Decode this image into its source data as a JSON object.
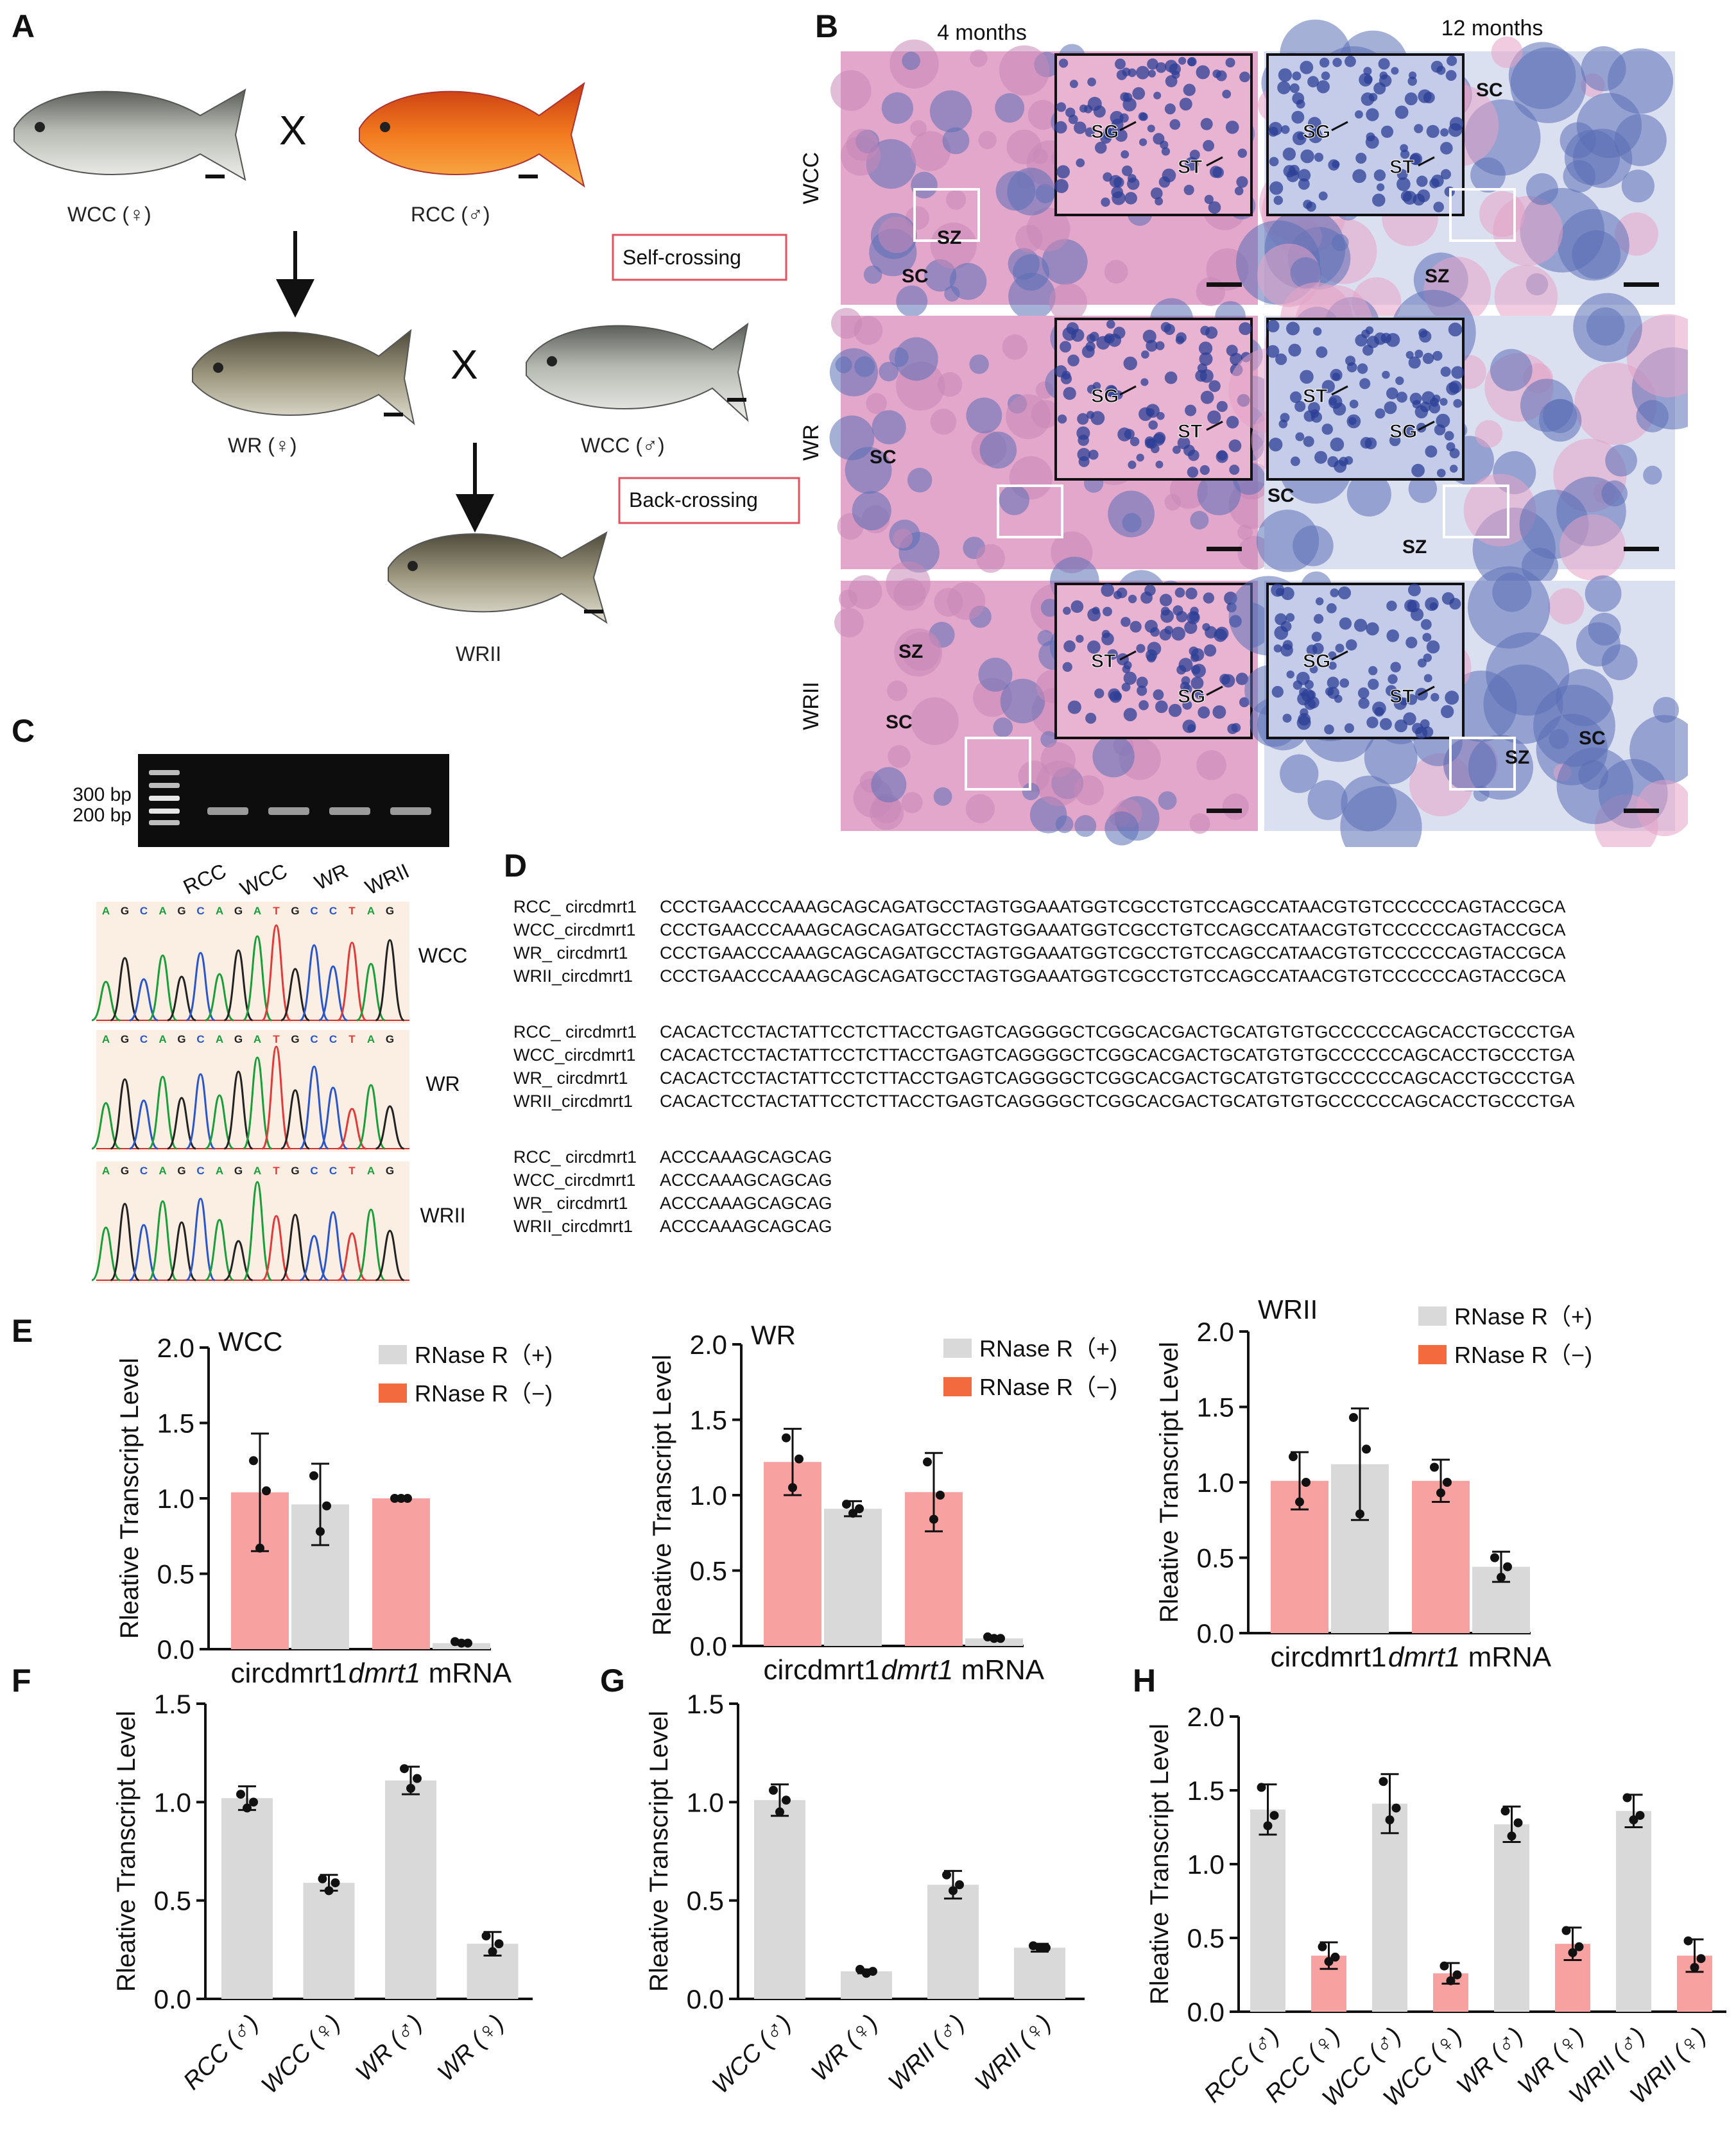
{
  "panel_labels": {
    "A": "A",
    "B": "B",
    "C": "C",
    "D": "D",
    "E": "E",
    "F": "F",
    "G": "G",
    "H": "H"
  },
  "panelA": {
    "wcc_female": "WCC (♀)",
    "rcc_male": "RCC (♂)",
    "cross": "X",
    "wr_female": "WR (♀)",
    "wcc_male": "WCC (♂)",
    "wrii": "WRII",
    "self_crossing": "Self-crossing",
    "back_crossing": "Back-crossing"
  },
  "panelB": {
    "col_4": "4 months",
    "col_12": "12 months",
    "rows": [
      "WCC",
      "WR",
      "WRII"
    ],
    "tissue_colors": {
      "he_pink": "#e3a7cb",
      "he_blue": "#5b6fb7",
      "dark_blue": "#2c3f95"
    },
    "labels": [
      {
        "r": 0,
        "c": 0,
        "items": [
          "SZ",
          "SC"
        ],
        "inset": [
          "SG",
          "ST"
        ]
      },
      {
        "r": 0,
        "c": 1,
        "items": [
          "SC",
          "SZ"
        ],
        "inset": [
          "SG",
          "ST"
        ]
      },
      {
        "r": 1,
        "c": 0,
        "items": [
          "SC"
        ],
        "inset": [
          "SG",
          "ST"
        ]
      },
      {
        "r": 1,
        "c": 1,
        "items": [
          "SC",
          "SZ"
        ],
        "inset": [
          "ST",
          "SG"
        ]
      },
      {
        "r": 2,
        "c": 0,
        "items": [
          "SZ",
          "SC"
        ],
        "inset": [
          "ST",
          "SG"
        ]
      },
      {
        "r": 2,
        "c": 1,
        "items": [
          "SC",
          "SZ"
        ],
        "inset": [
          "SG",
          "ST"
        ]
      }
    ]
  },
  "panelC": {
    "ladder": [
      "300 bp",
      "200 bp"
    ],
    "lanes": [
      "RCC",
      "WCC",
      "WR",
      "WRII"
    ],
    "bases": [
      "A",
      "G",
      "C",
      "A",
      "G",
      "C",
      "A",
      "G",
      "A",
      "T",
      "G",
      "C",
      "C",
      "T",
      "A",
      "G"
    ],
    "chrom_labels": [
      "WCC",
      "WR",
      "WRII"
    ],
    "base_colors": {
      "A": "#1a9e3a",
      "G": "#222222",
      "C": "#2a56c9",
      "T": "#e03a3a"
    }
  },
  "panelD": {
    "blocks": [
      {
        "rows": [
          {
            "name": "RCC_ circdmrt1",
            "seq": "CCCTGAACCCAAAGCAGCAGATGCCTAGTGGAAATGGTCGCCTGTCCAGCCATAACGTGTCCCCCCAGTACCGCA"
          },
          {
            "name": "WCC_circdmrt1",
            "seq": "CCCTGAACCCAAAGCAGCAGATGCCTAGTGGAAATGGTCGCCTGTCCAGCCATAACGTGTCCCCCCAGTACCGCA"
          },
          {
            "name": "WR_ circdmrt1",
            "seq": "CCCTGAACCCAAAGCAGCAGATGCCTAGTGGAAATGGTCGCCTGTCCAGCCATAACGTGTCCCCCCAGTACCGCA"
          },
          {
            "name": "WRII_circdmrt1",
            "seq": "CCCTGAACCCAAAGCAGCAGATGCCTAGTGGAAATGGTCGCCTGTCCAGCCATAACGTGTCCCCCCAGTACCGCA"
          }
        ]
      },
      {
        "rows": [
          {
            "name": "RCC_ circdmrt1",
            "seq": "CACACTCCTACTATTCCTCTTACCTGAGTCAGGGGCTCGGCACGACTGCATGTGTGCCCCCCAGCACCTGCCCTGA"
          },
          {
            "name": "WCC_circdmrt1",
            "seq": "CACACTCCTACTATTCCTCTTACCTGAGTCAGGGGCTCGGCACGACTGCATGTGTGCCCCCCAGCACCTGCCCTGA"
          },
          {
            "name": "WR_ circdmrt1",
            "seq": "CACACTCCTACTATTCCTCTTACCTGAGTCAGGGGCTCGGCACGACTGCATGTGTGCCCCCCAGCACCTGCCCTGA"
          },
          {
            "name": "WRII_circdmrt1",
            "seq": "CACACTCCTACTATTCCTCTTACCTGAGTCAGGGGCTCGGCACGACTGCATGTGTGCCCCCCAGCACCTGCCCTGA"
          }
        ]
      },
      {
        "rows": [
          {
            "name": "RCC_ circdmrt1",
            "seq": "ACCCAAAGCAGCAG"
          },
          {
            "name": "WCC_circdmrt1",
            "seq": "ACCCAAAGCAGCAG"
          },
          {
            "name": "WR_ circdmrt1",
            "seq": "ACCCAAAGCAGCAG"
          },
          {
            "name": "WRII_circdmrt1",
            "seq": "ACCCAAAGCAGCAG"
          }
        ]
      }
    ]
  },
  "chart_data": [
    {
      "panel": "E",
      "type": "bar",
      "title": "WCC",
      "ylabel": "Rleative Transcript Level",
      "ylim": [
        0,
        2
      ],
      "yticks": [
        "0.0",
        "0.5",
        "1.0",
        "1.5",
        "2.0"
      ],
      "groups": [
        "circdmrt1",
        "dmrt1 mRNA"
      ],
      "legend": [
        "RNase R（+)",
        "RNase R（−)"
      ],
      "series": [
        {
          "name": "RNase R（−)",
          "color": "#f7a1a1",
          "values": [
            1.04,
            1.0
          ],
          "err": [
            0.39,
            0.01
          ],
          "points": [
            [
              1.25,
              1.05,
              0.67
            ],
            [
              1.0,
              1.0,
              1.0
            ]
          ]
        },
        {
          "name": "RNase R（+)",
          "color": "#d9d9d9",
          "values": [
            0.96,
            0.04
          ],
          "err": [
            0.27,
            0.01
          ],
          "points": [
            [
              1.15,
              0.95,
              0.78
            ],
            [
              0.05,
              0.04,
              0.04
            ]
          ]
        }
      ]
    },
    {
      "panel": "E2",
      "type": "bar",
      "title": "WR",
      "ylabel": "Rleative Transcript Level",
      "ylim": [
        0,
        2
      ],
      "yticks": [
        "0.0",
        "0.5",
        "1.0",
        "1.5",
        "2.0"
      ],
      "groups": [
        "circdmrt1",
        "dmrt1 mRNA"
      ],
      "legend": [
        "RNase R（+)",
        "RNase R（−)"
      ],
      "series": [
        {
          "name": "RNase R（−)",
          "color": "#f7a1a1",
          "values": [
            1.22,
            1.02
          ],
          "err": [
            0.22,
            0.26
          ],
          "points": [
            [
              1.38,
              1.24,
              1.05
            ],
            [
              1.22,
              1.0,
              0.84
            ]
          ]
        },
        {
          "name": "RNase R（+)",
          "color": "#d9d9d9",
          "values": [
            0.91,
            0.05
          ],
          "err": [
            0.05,
            0.01
          ],
          "points": [
            [
              0.94,
              0.91,
              0.88
            ],
            [
              0.06,
              0.05,
              0.05
            ]
          ]
        }
      ]
    },
    {
      "panel": "E3",
      "type": "bar",
      "title": "WRII",
      "ylabel": "Rleative Transcript Level",
      "ylim": [
        0,
        2
      ],
      "yticks": [
        "0.0",
        "0.5",
        "1.0",
        "1.5",
        "2.0"
      ],
      "groups": [
        "circdmrt1",
        "dmrt1 mRNA"
      ],
      "legend": [
        "RNase R（+)",
        "RNase R（−)"
      ],
      "series": [
        {
          "name": "RNase R（−)",
          "color": "#f7a1a1",
          "values": [
            1.01,
            1.01
          ],
          "err": [
            0.19,
            0.14
          ],
          "points": [
            [
              1.17,
              1.0,
              0.87
            ],
            [
              1.1,
              1.0,
              0.93
            ]
          ]
        },
        {
          "name": "RNase R（+)",
          "color": "#d9d9d9",
          "values": [
            1.12,
            0.44
          ],
          "err": [
            0.37,
            0.1
          ],
          "points": [
            [
              1.43,
              1.22,
              0.79
            ],
            [
              0.5,
              0.44,
              0.37
            ]
          ]
        }
      ]
    },
    {
      "panel": "F",
      "type": "bar",
      "ylabel": "Rleative Transcript Level",
      "ylim": [
        0,
        1.5
      ],
      "yticks": [
        "0.0",
        "0.5",
        "1.0",
        "1.5"
      ],
      "categories": [
        "RCC (♂)",
        "WCC (♀)",
        "WR (♂)",
        "WR (♀)"
      ],
      "colors": [
        "#d9d9d9",
        "#d9d9d9",
        "#d9d9d9",
        "#d9d9d9"
      ],
      "values": [
        1.02,
        0.59,
        1.11,
        0.28
      ],
      "err": [
        0.06,
        0.04,
        0.07,
        0.06
      ],
      "points": [
        [
          1.04,
          1.0,
          0.97
        ],
        [
          0.61,
          0.59,
          0.55
        ],
        [
          1.17,
          1.12,
          1.07
        ],
        [
          0.32,
          0.28,
          0.24
        ]
      ]
    },
    {
      "panel": "G",
      "type": "bar",
      "ylabel": "Rleative Transcript Level",
      "ylim": [
        0,
        1.5
      ],
      "yticks": [
        "0.0",
        "0.5",
        "1.0",
        "1.5"
      ],
      "categories": [
        "WCC (♂)",
        "WR (♀)",
        "WRII (♂)",
        "WRII (♀)"
      ],
      "colors": [
        "#d9d9d9",
        "#d9d9d9",
        "#d9d9d9",
        "#d9d9d9"
      ],
      "values": [
        1.01,
        0.14,
        0.58,
        0.26
      ],
      "err": [
        0.08,
        0.01,
        0.07,
        0.02
      ],
      "points": [
        [
          1.06,
          1.01,
          0.95
        ],
        [
          0.15,
          0.14,
          0.13
        ],
        [
          0.63,
          0.58,
          0.55
        ],
        [
          0.27,
          0.26,
          0.26
        ]
      ]
    },
    {
      "panel": "H",
      "type": "bar",
      "ylabel": "Rleative Transcript Level",
      "ylim": [
        0,
        2
      ],
      "yticks": [
        "0.0",
        "0.5",
        "1.0",
        "1.5",
        "2.0"
      ],
      "categories": [
        "RCC (♂)",
        "RCC (♀)",
        "WCC (♂)",
        "WCC (♀)",
        "WR (♂)",
        "WR (♀)",
        "WRII (♂)",
        "WRII (♀)"
      ],
      "colors": [
        "#d9d9d9",
        "#f7a1a1",
        "#d9d9d9",
        "#f7a1a1",
        "#d9d9d9",
        "#f7a1a1",
        "#d9d9d9",
        "#f7a1a1"
      ],
      "values": [
        1.37,
        0.38,
        1.41,
        0.26,
        1.27,
        0.46,
        1.36,
        0.38
      ],
      "err": [
        0.17,
        0.09,
        0.2,
        0.07,
        0.12,
        0.11,
        0.11,
        0.11
      ],
      "points": [
        [
          1.52,
          1.33,
          1.26
        ],
        [
          0.44,
          0.37,
          0.34
        ],
        [
          1.56,
          1.38,
          1.3
        ],
        [
          0.31,
          0.25,
          0.21
        ],
        [
          1.36,
          1.28,
          1.19
        ],
        [
          0.55,
          0.44,
          0.4
        ],
        [
          1.45,
          1.33,
          1.3
        ],
        [
          0.48,
          0.36,
          0.3
        ]
      ]
    }
  ]
}
